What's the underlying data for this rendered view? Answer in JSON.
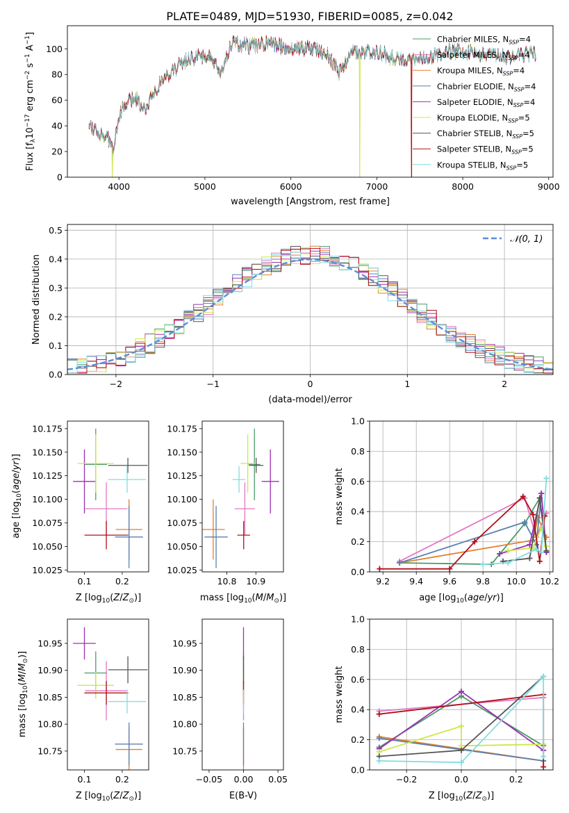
{
  "figure": {
    "title": "PLATE=0489, MJD=51930, FIBERID=0085, z=0.042"
  },
  "models": [
    {
      "name": "Chabrier MILES",
      "nssp": "4",
      "color": "#4a9a6a"
    },
    {
      "name": "Salpeter MILES",
      "nssp": "4",
      "color": "#e377c2"
    },
    {
      "name": "Kroupa MILES",
      "nssp": "4",
      "color": "#e08030"
    },
    {
      "name": "Chabrier ELODIE",
      "nssp": "4",
      "color": "#5b7fb0"
    },
    {
      "name": "Salpeter ELODIE",
      "nssp": "4",
      "color": "#9b30b0"
    },
    {
      "name": "Kroupa ELODIE",
      "nssp": "5",
      "color": "#cde84a"
    },
    {
      "name": "Chabrier STELIB",
      "nssp": "5",
      "color": "#555555"
    },
    {
      "name": "Salpeter STELIB",
      "nssp": "5",
      "color": "#b01018"
    },
    {
      "name": "Kroupa STELIB",
      "nssp": "5",
      "color": "#80dde0"
    }
  ],
  "chart_data": [
    {
      "id": "spectrum",
      "type": "line",
      "xlabel": "wavelength [Angstrom, rest frame]",
      "ylabel": "Flux [f",
      "xlim": [
        3400,
        9050
      ],
      "ylim": [
        0,
        118
      ],
      "xticks": [
        4000,
        5000,
        6000,
        7000,
        8000,
        9000
      ],
      "yticks": [
        0,
        20,
        40,
        60,
        80,
        100
      ],
      "legend_position": "upper right",
      "continuum": {
        "x": [
          3650,
          3800,
          3900,
          3935,
          3970,
          4000,
          4100,
          4200,
          4300,
          4400,
          4500,
          4600,
          4800,
          5000,
          5100,
          5175,
          5300,
          5500,
          5700,
          5900,
          6000,
          6200,
          6400,
          6563,
          6700,
          6900,
          7000,
          7200,
          7400,
          7600,
          7800,
          8000,
          8200,
          8500,
          8800
        ],
        "y": [
          42,
          33,
          28,
          18,
          38,
          48,
          58,
          62,
          52,
          66,
          75,
          82,
          92,
          95,
          90,
          78,
          104,
          102,
          104,
          102,
          100,
          101,
          98,
          82,
          97,
          97,
          99,
          92,
          93,
          92,
          98,
          98,
          96,
          94,
          96
        ]
      },
      "dropouts": [
        {
          "model": "Kroupa ELODIE",
          "x": 3922
        },
        {
          "model": "Kroupa ELODIE",
          "x": 6800
        },
        {
          "model": "Kroupa MILES",
          "x": 7405
        },
        {
          "model": "Salpeter STELIB",
          "x": 7405
        }
      ]
    },
    {
      "id": "residuals",
      "type": "histogram",
      "xlabel": "(data-model)/error",
      "ylabel": "Normed distribution",
      "xlim": [
        -2.5,
        2.5
      ],
      "ylim": [
        0,
        0.52
      ],
      "xticks": [
        -2,
        -1,
        0,
        1,
        2
      ],
      "yticks": [
        0.0,
        0.1,
        0.2,
        0.3,
        0.4,
        0.5
      ],
      "bin_width": 0.1,
      "reference_label": "𝒩(0, 1)",
      "reference_color": "#5b8dd9",
      "grid": true
    },
    {
      "id": "age-vs-z",
      "type": "scatter",
      "xlabel": "Z [log",
      "ylabel": "age  [log",
      "xlim": [
        0.055,
        0.27
      ],
      "ylim": [
        10.023,
        10.183
      ],
      "xticks": [
        0.1,
        0.2
      ],
      "yticks": [
        10.025,
        10.05,
        10.075,
        10.1,
        10.125,
        10.15,
        10.175
      ],
      "points": [
        {
          "model": "Chabrier MILES",
          "x": 0.13,
          "y": 10.137,
          "xerr": 0.03,
          "yerr": 0.038
        },
        {
          "model": "Salpeter MILES",
          "x": 0.158,
          "y": 10.09,
          "xerr": 0.056,
          "yerr": 0.028
        },
        {
          "model": "Kroupa MILES",
          "x": 0.218,
          "y": 10.068,
          "xerr": 0.035,
          "yerr": 0.032
        },
        {
          "model": "Chabrier ELODIE",
          "x": 0.218,
          "y": 10.06,
          "xerr": 0.037,
          "yerr": 0.033
        },
        {
          "model": "Salpeter ELODIE",
          "x": 0.1,
          "y": 10.119,
          "xerr": 0.03,
          "yerr": 0.034
        },
        {
          "model": "Kroupa ELODIE",
          "x": 0.13,
          "y": 10.138,
          "xerr": 0.048,
          "yerr": 0.031
        },
        {
          "model": "Chabrier STELIB",
          "x": 0.215,
          "y": 10.136,
          "xerr": 0.052,
          "yerr": 0.008
        },
        {
          "model": "Salpeter STELIB",
          "x": 0.158,
          "y": 10.062,
          "xerr": 0.058,
          "yerr": 0.015
        },
        {
          "model": "Kroupa STELIB",
          "x": 0.213,
          "y": 10.121,
          "xerr": 0.05,
          "yerr": 0.014
        }
      ]
    },
    {
      "id": "age-vs-mass",
      "type": "scatter",
      "xlabel": "mass [log",
      "ylabel": "",
      "xlim": [
        10.715,
        10.995
      ],
      "ylim": [
        10.023,
        10.183
      ],
      "xticks": [
        10.8,
        10.9
      ],
      "yticks": [
        10.025,
        10.05,
        10.075,
        10.1,
        10.125,
        10.15,
        10.175
      ],
      "points": [
        {
          "model": "Chabrier MILES",
          "x": 10.895,
          "y": 10.137,
          "xerr": 0.02,
          "yerr": 0.038
        },
        {
          "model": "Salpeter MILES",
          "x": 10.862,
          "y": 10.09,
          "xerr": 0.035,
          "yerr": 0.028
        },
        {
          "model": "Kroupa MILES",
          "x": 10.753,
          "y": 10.068,
          "xerr": 0.04,
          "yerr": 0.032
        },
        {
          "model": "Chabrier ELODIE",
          "x": 10.763,
          "y": 10.06,
          "xerr": 0.04,
          "yerr": 0.033
        },
        {
          "model": "Salpeter ELODIE",
          "x": 10.95,
          "y": 10.119,
          "xerr": 0.03,
          "yerr": 0.034
        },
        {
          "model": "Kroupa ELODIE",
          "x": 10.872,
          "y": 10.138,
          "xerr": 0.025,
          "yerr": 0.031
        },
        {
          "model": "Chabrier STELIB",
          "x": 10.901,
          "y": 10.136,
          "xerr": 0.025,
          "yerr": 0.008
        },
        {
          "model": "Salpeter STELIB",
          "x": 10.858,
          "y": 10.062,
          "xerr": 0.022,
          "yerr": 0.015
        },
        {
          "model": "Kroupa STELIB",
          "x": 10.842,
          "y": 10.121,
          "xerr": 0.022,
          "yerr": 0.014
        }
      ]
    },
    {
      "id": "weight-vs-age",
      "type": "line",
      "xlabel": "age  [log",
      "ylabel": "mass weight",
      "xlim": [
        9.12,
        10.22
      ],
      "ylim": [
        0,
        1
      ],
      "xticks": [
        9.2,
        9.4,
        9.6,
        9.8,
        10.0,
        10.2
      ],
      "yticks": [
        0.0,
        0.2,
        0.4,
        0.6,
        0.8,
        1.0
      ],
      "grid": true
    },
    {
      "id": "mass-vs-z",
      "type": "scatter",
      "xlabel": "Z [log",
      "ylabel": "mass [log",
      "xlim": [
        0.055,
        0.27
      ],
      "ylim": [
        10.715,
        10.995
      ],
      "xticks": [
        0.1,
        0.2
      ],
      "yticks": [
        10.75,
        10.8,
        10.85,
        10.9,
        10.95
      ],
      "points": [
        {
          "model": "Chabrier MILES",
          "x": 0.13,
          "y": 10.895,
          "xerr": 0.03,
          "yerr": 0.04
        },
        {
          "model": "Salpeter MILES",
          "x": 0.158,
          "y": 10.862,
          "xerr": 0.056,
          "yerr": 0.055
        },
        {
          "model": "Kroupa MILES",
          "x": 0.218,
          "y": 10.753,
          "xerr": 0.035,
          "yerr": 0.04
        },
        {
          "model": "Chabrier ELODIE",
          "x": 0.218,
          "y": 10.763,
          "xerr": 0.037,
          "yerr": 0.04
        },
        {
          "model": "Salpeter ELODIE",
          "x": 0.1,
          "y": 10.95,
          "xerr": 0.03,
          "yerr": 0.03
        },
        {
          "model": "Kroupa ELODIE",
          "x": 0.13,
          "y": 10.872,
          "xerr": 0.048,
          "yerr": 0.025
        },
        {
          "model": "Chabrier STELIB",
          "x": 0.215,
          "y": 10.901,
          "xerr": 0.052,
          "yerr": 0.025
        },
        {
          "model": "Salpeter STELIB",
          "x": 0.158,
          "y": 10.858,
          "xerr": 0.058,
          "yerr": 0.022
        },
        {
          "model": "Kroupa STELIB",
          "x": 0.213,
          "y": 10.842,
          "xerr": 0.05,
          "yerr": 0.022
        }
      ]
    },
    {
      "id": "mass-vs-ebv",
      "type": "scatter",
      "xlabel": "E(B-V)",
      "ylabel": "",
      "xlim": [
        -0.06,
        0.058
      ],
      "ylim": [
        10.715,
        10.995
      ],
      "xticks": [
        -0.05,
        0.0,
        0.05
      ],
      "xticklabels": [
        "−0.05",
        "0.00",
        "0.05"
      ],
      "yticks": [
        10.75,
        10.8,
        10.85,
        10.9,
        10.95
      ]
    },
    {
      "id": "weight-vs-z",
      "type": "line",
      "xlabel": "Z [log",
      "ylabel": "mass weight",
      "xlim": [
        -0.335,
        0.335
      ],
      "ylim": [
        0,
        1
      ],
      "xticks": [
        -0.2,
        0.0,
        0.2
      ],
      "xticklabels": [
        "−0.2",
        "0.0",
        "0.2"
      ],
      "yticks": [
        0.0,
        0.2,
        0.4,
        0.6,
        0.8,
        1.0
      ],
      "grid": true
    }
  ]
}
